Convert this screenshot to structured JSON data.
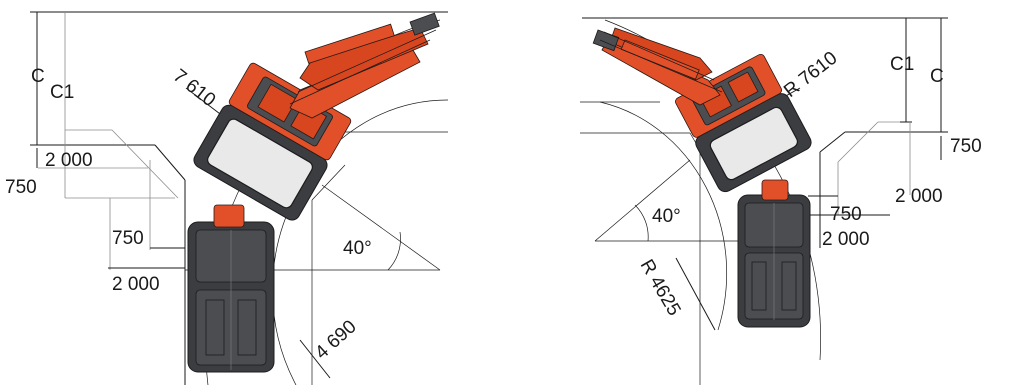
{
  "left_figure": {
    "label_c": "C",
    "label_c1": "C1",
    "label_2000_top": "2 000",
    "label_750_left": "750",
    "label_750_mid": "750",
    "label_2000_bottom": "2 000",
    "label_outer_radius": "7 610",
    "label_angle": "40°",
    "label_inner_radius": "4 690"
  },
  "right_figure": {
    "label_c1": "C1",
    "label_c": "C",
    "label_outer_radius": "R 7610",
    "label_750_right": "750",
    "label_2000_right": "2 000",
    "label_750_mid": "750",
    "label_2000_lower": "2 000",
    "label_angle": "40°",
    "label_inner_radius": "R 4625"
  },
  "colors": {
    "machine_orange": "#e2502a",
    "carrier_dark": "#3c3d40",
    "cabin_light": "#e9e9e9"
  }
}
